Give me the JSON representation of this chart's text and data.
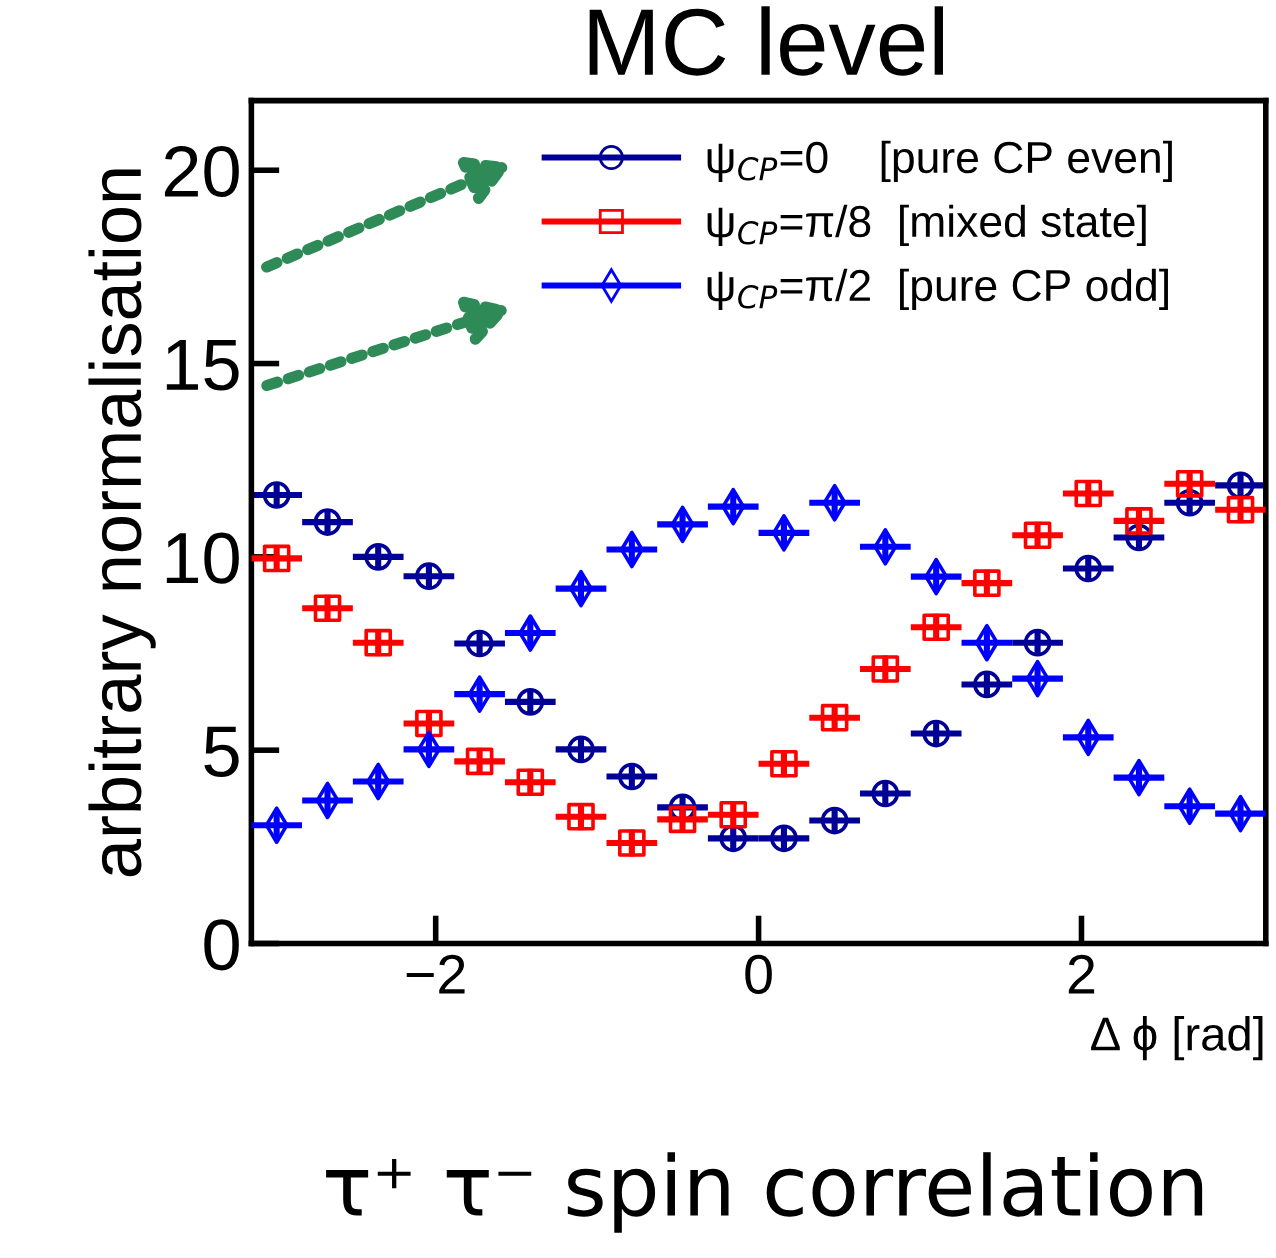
{
  "chart_data": {
    "type": "scatter",
    "title": "MC level",
    "xlabel": "Δ ϕ [rad]",
    "ylabel": "arbitrary normalisation",
    "annotations": [
      "τ⁺ τ⁻ spin correlation"
    ],
    "x": [
      -2.985,
      -2.67,
      -2.356,
      -2.042,
      -1.728,
      -1.414,
      -1.1,
      -0.785,
      -0.471,
      -0.157,
      0.157,
      0.471,
      0.785,
      1.1,
      1.414,
      1.728,
      2.042,
      2.356,
      2.67,
      2.985
    ],
    "series": [
      {
        "name": "ψ$_{CP}$=0    [pure CP even]",
        "color": "#000099",
        "marker": "circle",
        "values": [
          11.6,
          10.9,
          10.0,
          9.5,
          7.76,
          6.25,
          5.02,
          4.32,
          3.52,
          2.72,
          2.72,
          3.18,
          3.88,
          5.43,
          6.7,
          7.78,
          9.7,
          10.5,
          11.4,
          11.85
        ],
        "errors": [
          0.3,
          0.3,
          0.3,
          0.3,
          0.3,
          0.3,
          0.3,
          0.3,
          0.3,
          0.3,
          0.3,
          0.3,
          0.3,
          0.3,
          0.3,
          0.3,
          0.3,
          0.3,
          0.3,
          0.3
        ],
        "xerrors": [
          0.157,
          0.157,
          0.157,
          0.157,
          0.157,
          0.157,
          0.157,
          0.157,
          0.157,
          0.157,
          0.157,
          0.157,
          0.157,
          0.157,
          0.157,
          0.157,
          0.157,
          0.157,
          0.157,
          0.157
        ]
      },
      {
        "name": "ψ$_{CP}$=π/8  [mixed state]",
        "color": "#ff0000",
        "marker": "square",
        "values": [
          9.96,
          8.67,
          7.78,
          5.69,
          4.71,
          4.17,
          3.28,
          2.6,
          3.21,
          3.33,
          4.65,
          5.84,
          7.1,
          8.18,
          9.32,
          10.56,
          11.64,
          10.93,
          11.89,
          11.22
        ],
        "errors": [
          0.35,
          0.35,
          0.35,
          0.35,
          0.35,
          0.35,
          0.35,
          0.35,
          0.35,
          0.35,
          0.35,
          0.35,
          0.35,
          0.35,
          0.35,
          0.35,
          0.35,
          0.35,
          0.35,
          0.35
        ],
        "xerrors": [
          0.157,
          0.157,
          0.157,
          0.157,
          0.157,
          0.157,
          0.157,
          0.157,
          0.157,
          0.157,
          0.157,
          0.157,
          0.157,
          0.157,
          0.157,
          0.157,
          0.157,
          0.157,
          0.157,
          0.157
        ]
      },
      {
        "name": "ψ$_{CP}$=π/2  [pure CP odd]",
        "color": "#0000ff",
        "marker": "diamond",
        "values": [
          3.06,
          3.7,
          4.19,
          5.02,
          6.45,
          8.03,
          9.18,
          10.19,
          10.84,
          11.3,
          10.62,
          11.4,
          10.26,
          9.49,
          7.78,
          6.85,
          5.33,
          4.29,
          3.55,
          3.36
        ],
        "errors": [
          0.35,
          0.35,
          0.35,
          0.35,
          0.35,
          0.35,
          0.35,
          0.35,
          0.35,
          0.35,
          0.35,
          0.35,
          0.35,
          0.35,
          0.35,
          0.35,
          0.35,
          0.35,
          0.35,
          0.35
        ],
        "xerrors": [
          0.157,
          0.157,
          0.157,
          0.157,
          0.157,
          0.157,
          0.157,
          0.157,
          0.157,
          0.157,
          0.157,
          0.157,
          0.157,
          0.157,
          0.157,
          0.157,
          0.157,
          0.157,
          0.157,
          0.157
        ]
      }
    ],
    "xlim": [
      -3.1416,
      3.1416
    ],
    "ylim": [
      0,
      21.8
    ],
    "xticks": [
      {
        "value": -2,
        "label": "−2"
      },
      0,
      2
    ],
    "yticks": [
      0,
      5,
      10,
      15,
      20
    ],
    "grid": false,
    "legend": "top"
  }
}
